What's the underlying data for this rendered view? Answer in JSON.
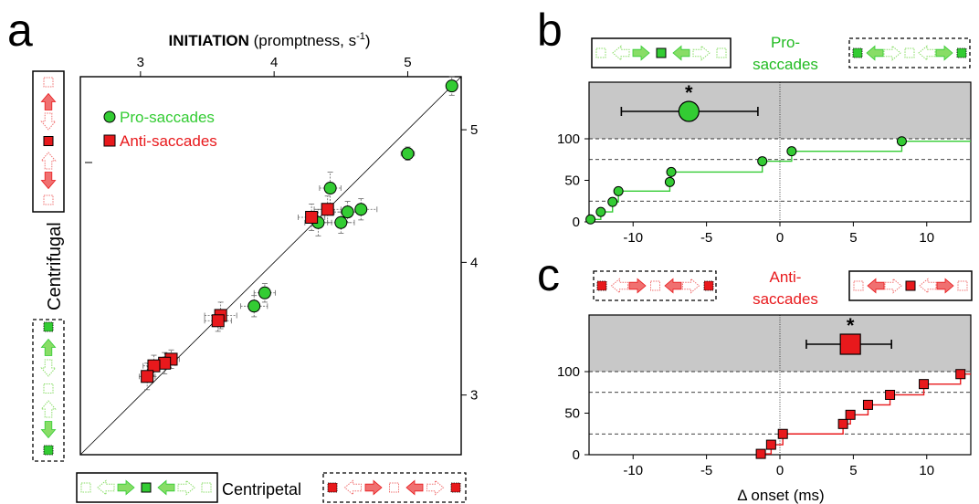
{
  "colors": {
    "pro": "#33cc33",
    "anti": "#e8191c",
    "pro_text": "#22bb22",
    "anti_text": "#e8191c",
    "grey_region": "#c8c8c8",
    "light_pro": "#88dd66",
    "light_anti": "#f07070"
  },
  "labels": {
    "a": "a",
    "b": "b",
    "c": "c",
    "pro_b_1": "Pro-",
    "pro_b_2": "saccades",
    "anti_c_1": "Anti-",
    "anti_c_2": "saccades",
    "centrifugal": "Centrifugal",
    "centripetal": "Centripetal",
    "star": "*"
  },
  "icons": {
    "arrow_rows": "arrow-glyph-icon",
    "fixation": "square-target-icon"
  },
  "chart_data": [
    {
      "panel": "a",
      "type": "scatter",
      "title_bold": "INITIATION",
      "title_rest": " (promptness, s",
      "title_sup": "-1",
      "title_end": ")",
      "xlabel": "Centripetal",
      "ylabel": "Centrifugal",
      "xlim": [
        2.55,
        5.4
      ],
      "ylim": [
        2.55,
        5.4
      ],
      "xticks": [
        3,
        4,
        5
      ],
      "yticks": [
        3,
        4,
        5
      ],
      "diagonal": true,
      "legend": [
        {
          "name": "Pro-saccades",
          "color": "#33cc33",
          "marker": "circle"
        },
        {
          "name": "Anti-saccades",
          "color": "#e8191c",
          "marker": "square"
        }
      ],
      "series": [
        {
          "name": "Pro-saccades",
          "points": [
            {
              "x": 5.33,
              "y": 5.33,
              "ex": 0.03,
              "ey": 0.07
            },
            {
              "x": 5.0,
              "y": 4.82,
              "ex": 0.05,
              "ey": 0.05
            },
            {
              "x": 4.42,
              "y": 4.56,
              "ex": 0.08,
              "ey": 0.12
            },
            {
              "x": 4.55,
              "y": 4.38,
              "ex": 0.1,
              "ey": 0.08
            },
            {
              "x": 4.65,
              "y": 4.4,
              "ex": 0.12,
              "ey": 0.08
            },
            {
              "x": 4.5,
              "y": 4.3,
              "ex": 0.1,
              "ey": 0.08
            },
            {
              "x": 4.33,
              "y": 4.3,
              "ex": 0.1,
              "ey": 0.1
            },
            {
              "x": 3.93,
              "y": 3.77,
              "ex": 0.08,
              "ey": 0.07
            },
            {
              "x": 3.85,
              "y": 3.67,
              "ex": 0.1,
              "ey": 0.08
            }
          ]
        },
        {
          "name": "Anti-saccades",
          "points": [
            {
              "x": 4.4,
              "y": 4.4,
              "ex": 0.1,
              "ey": 0.1
            },
            {
              "x": 4.28,
              "y": 4.34,
              "ex": 0.1,
              "ey": 0.1
            },
            {
              "x": 3.6,
              "y": 3.6,
              "ex": 0.12,
              "ey": 0.1
            },
            {
              "x": 3.58,
              "y": 3.56,
              "ex": 0.1,
              "ey": 0.08
            },
            {
              "x": 3.23,
              "y": 3.27,
              "ex": 0.06,
              "ey": 0.07
            },
            {
              "x": 3.18,
              "y": 3.24,
              "ex": 0.08,
              "ey": 0.08
            },
            {
              "x": 3.1,
              "y": 3.22,
              "ex": 0.08,
              "ey": 0.08
            },
            {
              "x": 3.05,
              "y": 3.14,
              "ex": 0.06,
              "ey": 0.1
            }
          ]
        }
      ]
    },
    {
      "panel": "b",
      "type": "line",
      "series_name": "Pro-saccades",
      "xlim": [
        -13,
        13
      ],
      "ylim": [
        0,
        100
      ],
      "xticks": [
        -10,
        -5,
        0,
        5,
        10
      ],
      "yticks": [
        0,
        50,
        100
      ],
      "dashed": [
        25,
        75,
        100
      ],
      "points": [
        {
          "x": -12.9,
          "y": 3
        },
        {
          "x": -12.2,
          "y": 12
        },
        {
          "x": -11.4,
          "y": 24
        },
        {
          "x": -11.0,
          "y": 37
        },
        {
          "x": -7.5,
          "y": 48
        },
        {
          "x": -7.4,
          "y": 60
        },
        {
          "x": -1.2,
          "y": 73
        },
        {
          "x": 0.8,
          "y": 85
        },
        {
          "x": 8.3,
          "y": 97
        }
      ],
      "mean": {
        "x": -6.2,
        "xerr_low": -10.8,
        "xerr_high": -1.5
      },
      "significance": "*"
    },
    {
      "panel": "c",
      "type": "line",
      "series_name": "Anti-saccades",
      "xlabel": "Δ onset (ms)",
      "xlim": [
        -13,
        13
      ],
      "ylim": [
        0,
        100
      ],
      "xticks": [
        -10,
        -5,
        0,
        5,
        10
      ],
      "yticks": [
        0,
        50,
        100
      ],
      "dashed": [
        25,
        75,
        100
      ],
      "points": [
        {
          "x": -1.3,
          "y": 1
        },
        {
          "x": -0.6,
          "y": 12
        },
        {
          "x": 0.2,
          "y": 25
        },
        {
          "x": 4.3,
          "y": 37
        },
        {
          "x": 4.8,
          "y": 48
        },
        {
          "x": 6.0,
          "y": 60
        },
        {
          "x": 7.5,
          "y": 72
        },
        {
          "x": 9.8,
          "y": 85
        },
        {
          "x": 12.3,
          "y": 97
        }
      ],
      "mean": {
        "x": 4.8,
        "xerr_low": 1.8,
        "xerr_high": 7.6
      },
      "significance": "*"
    }
  ]
}
